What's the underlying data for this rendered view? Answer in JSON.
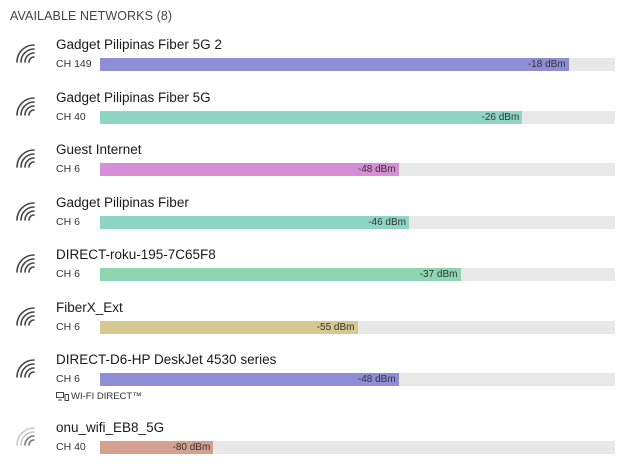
{
  "header": {
    "title": "AVAILABLE NETWORKS (8)"
  },
  "networks": [
    {
      "name": "Gadget Pilipinas Fiber 5G 2",
      "channel": "CH 149",
      "signal_label": "-18 dBm",
      "signal_dbm": -18,
      "strength": 0.91,
      "color": "#8e8ed6",
      "icon": "wifi-strong-icon"
    },
    {
      "name": "Gadget Pilipinas Fiber 5G",
      "channel": "CH 40",
      "signal_label": "-26 dBm",
      "signal_dbm": -26,
      "strength": 0.82,
      "color": "#8fd5c4",
      "icon": "wifi-strong-icon"
    },
    {
      "name": "Guest Internet",
      "channel": "CH 6",
      "signal_label": "-48 dBm",
      "signal_dbm": -48,
      "strength": 0.58,
      "color": "#d68fd6",
      "icon": "wifi-strong-icon"
    },
    {
      "name": "Gadget Pilipinas Fiber",
      "channel": "CH 6",
      "signal_label": "-46 dBm",
      "signal_dbm": -46,
      "strength": 0.6,
      "color": "#8fd5c4",
      "icon": "wifi-strong-icon"
    },
    {
      "name": "DIRECT-roku-195-7C65F8",
      "channel": "CH 6",
      "signal_label": "-37 dBm",
      "signal_dbm": -37,
      "strength": 0.7,
      "color": "#8fd5b2",
      "icon": "wifi-strong-icon"
    },
    {
      "name": "FiberX_Ext",
      "channel": "CH 6",
      "signal_label": "-55 dBm",
      "signal_dbm": -55,
      "strength": 0.5,
      "color": "#d6c98f",
      "icon": "wifi-strong-icon"
    },
    {
      "name": "DIRECT-D6-HP DeskJet 4530 series",
      "channel": "CH 6",
      "signal_label": "-48 dBm",
      "signal_dbm": -48,
      "strength": 0.58,
      "color": "#8e8ed6",
      "icon": "wifi-strong-icon",
      "tag": "WI-FI DIRECT™",
      "tag_icon": "wifi-direct-icon"
    },
    {
      "name": "onu_wifi_EB8_5G",
      "channel": "CH 40",
      "signal_label": "-80 dBm",
      "signal_dbm": -80,
      "strength": 0.22,
      "color": "#d6a08f",
      "icon": "wifi-weak-icon"
    }
  ]
}
